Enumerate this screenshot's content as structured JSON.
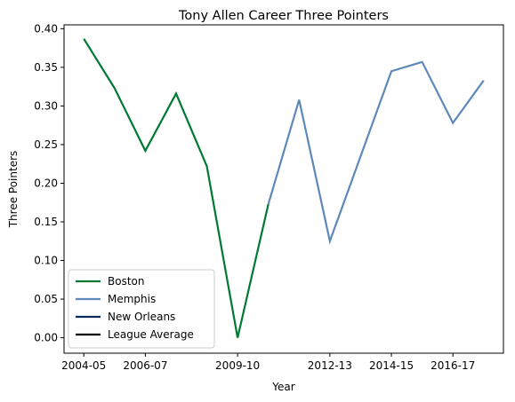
{
  "chart_data": {
    "type": "line",
    "title": "Tony Allen  Career Three Pointers",
    "xlabel": "Year",
    "ylabel": "Three Pointers",
    "x": [
      "2004-05",
      "2005-06",
      "2006-07",
      "2007-08",
      "2008-09",
      "2009-10",
      "2010-11",
      "2011-12",
      "2012-13",
      "2013-14",
      "2014-15",
      "2015-16",
      "2016-17",
      "2017-18"
    ],
    "xticks": [
      "2004-05",
      "2006-07",
      "2009-10",
      "2012-13",
      "2014-15",
      "2016-17"
    ],
    "ylim": [
      -0.02,
      0.405
    ],
    "yticks": [
      "0.00",
      "0.05",
      "0.10",
      "0.15",
      "0.20",
      "0.25",
      "0.30",
      "0.35",
      "0.40"
    ],
    "grid": false,
    "legend_position": "lower-left",
    "series": [
      {
        "name": "Boston",
        "color": "#007A33",
        "points": [
          [
            "2004-05",
            0.387
          ],
          [
            "2005-06",
            0.323
          ],
          [
            "2006-07",
            0.242
          ],
          [
            "2007-08",
            0.316
          ],
          [
            "2008-09",
            0.222
          ],
          [
            "2009-10",
            0.0
          ],
          [
            "2010-11",
            0.173
          ]
        ]
      },
      {
        "name": "Memphis",
        "color": "#5D89BA",
        "points": [
          [
            "2010-11",
            0.173
          ],
          [
            "2011-12",
            0.308
          ],
          [
            "2012-13",
            0.125
          ],
          [
            "2013-14",
            0.235
          ],
          [
            "2014-15",
            0.345
          ],
          [
            "2015-16",
            0.357
          ],
          [
            "2016-17",
            0.278
          ],
          [
            "2017-18",
            0.333
          ]
        ]
      },
      {
        "name": "New Orleans",
        "color": "#002B5C",
        "points": []
      },
      {
        "name": "League Average",
        "color": "#000000",
        "points": []
      }
    ]
  }
}
